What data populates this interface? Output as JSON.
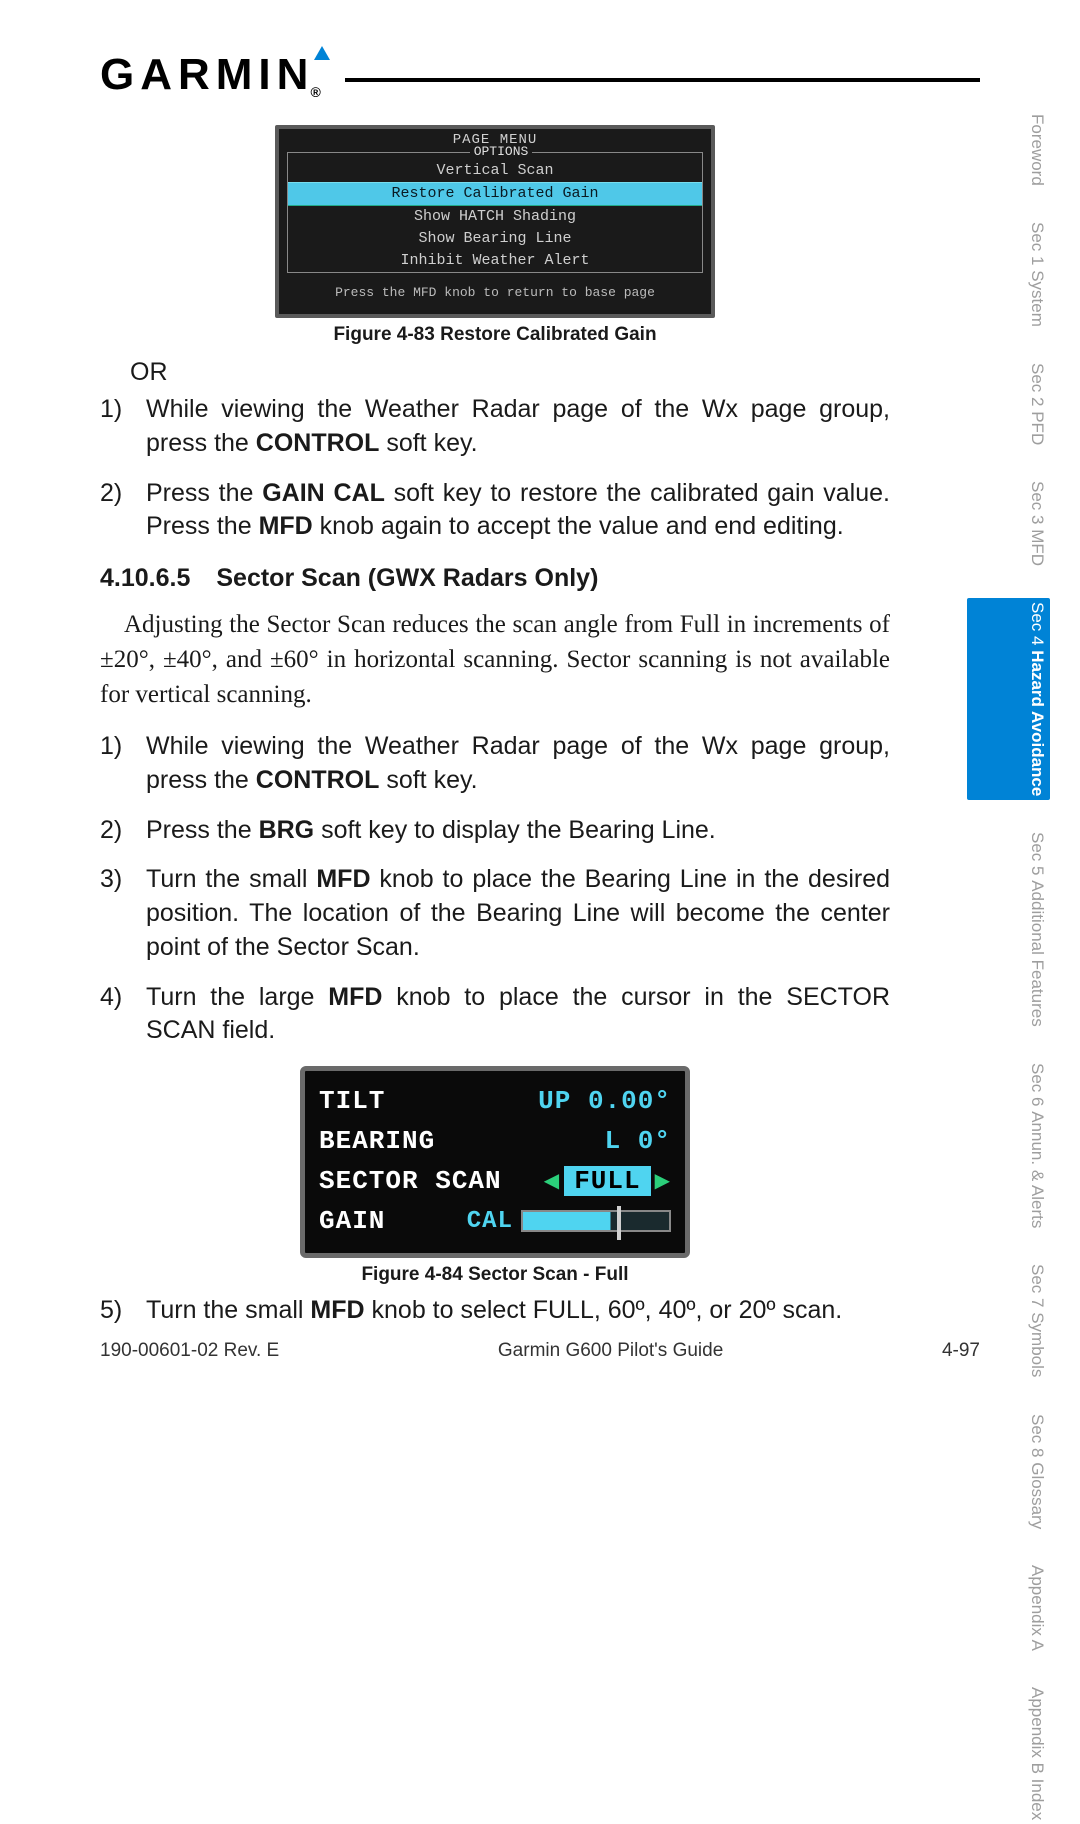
{
  "brand": "GARMIN",
  "side_tabs": [
    {
      "sec": "",
      "label": "Foreword",
      "active": false
    },
    {
      "sec": "Sec 1",
      "label": "System",
      "active": false
    },
    {
      "sec": "Sec 2",
      "label": "PFD",
      "active": false
    },
    {
      "sec": "Sec 3",
      "label": "MFD",
      "active": false
    },
    {
      "sec": "Sec 4",
      "label": "Hazard Avoidance",
      "active": true
    },
    {
      "sec": "Sec 5",
      "label": "Additional Features",
      "active": false
    },
    {
      "sec": "Sec 6",
      "label": "Annun. & Alerts",
      "active": false
    },
    {
      "sec": "Sec 7",
      "label": "Symbols",
      "active": false
    },
    {
      "sec": "Sec 8",
      "label": "Glossary",
      "active": false
    },
    {
      "sec": "",
      "label": "Appendix A",
      "active": false
    },
    {
      "sec": "",
      "label": "Appendix B Index",
      "active": false
    }
  ],
  "figure1": {
    "title": "PAGE MENU",
    "options_label": "OPTIONS",
    "items": [
      {
        "text": "Vertical Scan",
        "selected": false
      },
      {
        "text": "Restore Calibrated Gain",
        "selected": true
      },
      {
        "text": "Show HATCH Shading",
        "selected": false
      },
      {
        "text": "Show Bearing Line",
        "selected": false
      },
      {
        "text": "Inhibit Weather Alert",
        "selected": false
      }
    ],
    "footer": "Press the MFD knob to return to base page",
    "caption": "Figure 4-83  Restore Calibrated Gain"
  },
  "or_text": "OR",
  "steps1": [
    {
      "n": "1)",
      "pre": "While viewing the Weather Radar page of the Wx page group, press the ",
      "b": "CONTROL",
      "post": " soft key."
    },
    {
      "n": "2)",
      "pre": "Press the ",
      "b": "GAIN CAL",
      "mid": " soft key to restore the calibrated gain value. Press the ",
      "b2": "MFD",
      "post": " knob again to accept the value and end editing."
    }
  ],
  "heading": {
    "num": "4.10.6.5",
    "title": "Sector Scan (GWX Radars Only)"
  },
  "paragraph": "Adjusting the Sector Scan reduces the scan angle from Full in increments of ±20°, ±40°, and ±60° in horizontal scanning. Sector scanning is not available for vertical scanning.",
  "steps2": [
    {
      "n": "1)",
      "pre": "While viewing the Weather Radar page of the Wx page group, press the ",
      "b": "CONTROL",
      "post": " soft key."
    },
    {
      "n": "2)",
      "pre": "Press the ",
      "b": "BRG",
      "post": " soft key to display the Bearing Line."
    },
    {
      "n": "3)",
      "pre": "Turn the small ",
      "b": "MFD",
      "post": " knob to place the Bearing Line in the desired position. The location of the Bearing Line will become the center point of the Sector Scan."
    },
    {
      "n": "4)",
      "pre": "Turn the large ",
      "b": "MFD",
      "post": " knob to place the cursor in the SECTOR SCAN field."
    }
  ],
  "figure2": {
    "rows": {
      "tilt_label": "TILT",
      "tilt_val": "UP 0.00°",
      "bearing_label": "BEARING",
      "bearing_val": "L 0°",
      "sector_label": "SECTOR SCAN",
      "sector_val": "FULL",
      "gain_label": "GAIN",
      "gain_val": "CAL"
    },
    "caption": "Figure 4-84  Sector Scan - Full"
  },
  "step5": {
    "n": "5)",
    "pre": "Turn the small ",
    "b": "MFD",
    "post": " knob to select FULL, 60º, 40º, or 20º scan."
  },
  "footer": {
    "left": "190-00601-02  Rev. E",
    "center": "Garmin G600 Pilot's Guide",
    "right": "4-97"
  },
  "colors": {
    "accent": "#0083d6",
    "cyan": "#4fd4f0",
    "green": "#2bcf7a",
    "tab_inactive": "#9e9e9e"
  }
}
